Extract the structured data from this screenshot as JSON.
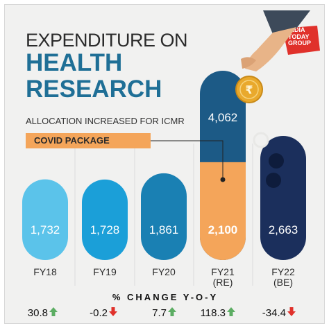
{
  "brand": {
    "logo_text": "INDIA TODAY GROUP"
  },
  "header": {
    "title_line1": "EXPENDITURE ON",
    "title_line2": "HEALTH",
    "title_line3": "RESEARCH",
    "subtitle": "ALLOCATION INCREASED FOR ICMR",
    "covid_label": "COVID PACKAGE"
  },
  "change_title": "% CHANGE Y-O-Y",
  "colors": {
    "background": "#f1f1f0",
    "title_blue": "#1f6f96",
    "covid_orange": "#f4a55a",
    "up_green": "#5cad63",
    "down_red": "#e0312b",
    "logo_red": "#e0312b"
  },
  "chart_data": {
    "type": "bar",
    "categories": [
      "FY18",
      "FY19",
      "FY20",
      "FY21 (RE)",
      "FY22 (BE)"
    ],
    "category_lines": [
      [
        "FY18"
      ],
      [
        "FY19"
      ],
      [
        "FY20"
      ],
      [
        "FY21",
        "(RE)"
      ],
      [
        "FY22",
        "(BE)"
      ]
    ],
    "values": [
      1732,
      1728,
      1861,
      4062,
      2663
    ],
    "value_labels": [
      "1,732",
      "1,728",
      "1,861",
      "4,062",
      "2,663"
    ],
    "covid_package": {
      "category": "FY21 (RE)",
      "value": 2100,
      "label": "2,100"
    },
    "bar_colors": [
      "#5bc3ea",
      "#1b9fd8",
      "#1a80b3",
      "#1c5a86",
      "#1b2f5c"
    ],
    "yoy_change": [
      {
        "value": 30.8,
        "label": "30.8",
        "direction": "up"
      },
      {
        "value": -0.2,
        "label": "-0.2",
        "direction": "down"
      },
      {
        "value": 7.7,
        "label": "7.7",
        "direction": "up"
      },
      {
        "value": 118.3,
        "label": "118.3",
        "direction": "up"
      },
      {
        "value": -34.4,
        "label": "-34.4",
        "direction": "down"
      }
    ],
    "title": "EXPENDITURE ON HEALTH RESEARCH",
    "xlabel": "",
    "ylabel": "",
    "grid": false
  }
}
